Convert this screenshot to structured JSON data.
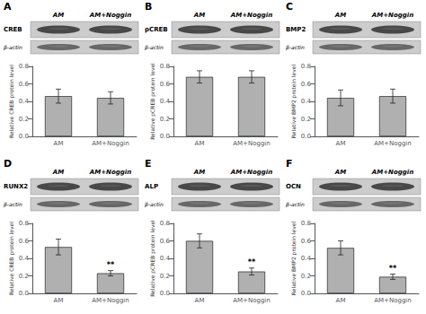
{
  "chart_data": [
    {
      "type": "bar",
      "title": "A",
      "ylabel": "Relative CREB protein level",
      "categories": [
        "AM",
        "AM+Noggin"
      ],
      "values": [
        0.46,
        0.44
      ],
      "errors": [
        0.08,
        0.07
      ],
      "annotations": [
        {
          "text": "CREB"
        },
        {
          "text": "β-actin"
        }
      ],
      "color": "#b0b0b0",
      "ylim": [
        0.0,
        0.8
      ],
      "yticks": [
        {
          "value": 0.0,
          "label": "0.0"
        },
        0.2,
        0.4,
        0.6,
        0.8
      ],
      "grid": false
    },
    {
      "type": "bar",
      "title": "B",
      "ylabel": "Relative pCREB protein level",
      "categories": [
        "AM",
        "AM+Noggin"
      ],
      "values": [
        0.68,
        0.68
      ],
      "errors": [
        0.07,
        0.07
      ],
      "annotations": [
        {
          "text": "pCREB"
        },
        {
          "text": "β-actin"
        }
      ],
      "color": "#b0b0b0",
      "ylim": [
        0.0,
        0.8
      ],
      "yticks": [
        {
          "value": 0.0,
          "label": "0.0"
        },
        0.2,
        0.4,
        0.6,
        0.8
      ],
      "grid": false
    },
    {
      "type": "bar",
      "title": "C",
      "ylabel": "Relative BMP2 protein level",
      "categories": [
        "AM",
        "AM+Noggin"
      ],
      "values": [
        0.44,
        0.46
      ],
      "errors": [
        0.09,
        0.08
      ],
      "annotations": [
        {
          "text": "BMP2"
        },
        {
          "text": "β-actin"
        }
      ],
      "color": "#b0b0b0",
      "ylim": [
        0.0,
        0.8
      ],
      "yticks": [
        {
          "value": 0.0,
          "label": "0.0"
        },
        0.2,
        0.4,
        0.6,
        0.8
      ],
      "grid": false
    },
    {
      "type": "bar",
      "title": "D",
      "ylabel": "Relative CREB protein level",
      "categories": [
        "AM",
        "AM+Noggin"
      ],
      "values": [
        0.53,
        0.23
      ],
      "errors": [
        0.09,
        0.03
      ],
      "annotations": [
        {
          "text": "RUNX2"
        },
        {
          "text": "β-actin"
        },
        {
          "text": "**",
          "category": "AM+Noggin"
        }
      ],
      "color": "#b0b0b0",
      "ylim": [
        0.0,
        0.8
      ],
      "yticks": [
        {
          "value": 0.0,
          "label": "0.0"
        },
        0.2,
        0.4,
        0.6,
        0.8
      ],
      "grid": false
    },
    {
      "type": "bar",
      "title": "E",
      "ylabel": "Relative pCREB protein level",
      "categories": [
        "AM",
        "AM+Noggin"
      ],
      "values": [
        0.6,
        0.25
      ],
      "errors": [
        0.08,
        0.04
      ],
      "annotations": [
        {
          "text": "ALP"
        },
        {
          "text": "β-actin"
        },
        {
          "text": "**",
          "category": "AM+Noggin"
        }
      ],
      "color": "#b0b0b0",
      "ylim": [
        0.0,
        0.8
      ],
      "yticks": [
        {
          "value": 0.0,
          "label": "0.0"
        },
        0.2,
        0.4,
        0.6,
        0.8
      ],
      "grid": false
    },
    {
      "type": "bar",
      "title": "F",
      "ylabel": "Relative BMP2 protein level",
      "categories": [
        "AM",
        "AM+Noggin"
      ],
      "values": [
        0.52,
        0.19
      ],
      "errors": [
        0.08,
        0.03
      ],
      "annotations": [
        {
          "text": "OCN"
        },
        {
          "text": "β-actin"
        },
        {
          "text": "**",
          "category": "AM+Noggin"
        }
      ],
      "color": "#b0b0b0",
      "ylim": [
        0.0,
        0.8
      ],
      "yticks": [
        {
          "value": 0.0,
          "label": "0.0"
        },
        0.2,
        0.4,
        0.6,
        0.8
      ],
      "grid": false
    }
  ]
}
